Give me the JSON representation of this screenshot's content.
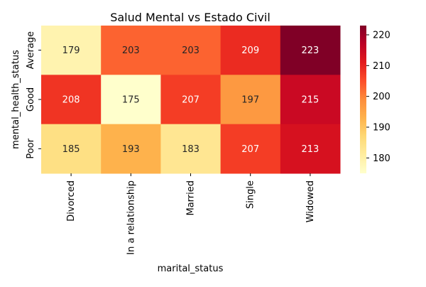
{
  "chart_data": {
    "type": "heatmap",
    "title": "Salud Mental vs Estado Civil",
    "xlabel": "marital_status",
    "ylabel": "mental_health_status",
    "x_categories": [
      "Divorced",
      "In a relationship",
      "Married",
      "Single",
      "Widowed"
    ],
    "y_categories": [
      "Average",
      "Good",
      "Poor"
    ],
    "values": [
      [
        179,
        203,
        203,
        209,
        223
      ],
      [
        208,
        175,
        207,
        197,
        215
      ],
      [
        185,
        193,
        183,
        207,
        213
      ]
    ],
    "colormap": "YlOrRd",
    "color_range": [
      175,
      223
    ],
    "colorbar_ticks": [
      180,
      190,
      200,
      210,
      220
    ],
    "annotations": true
  }
}
